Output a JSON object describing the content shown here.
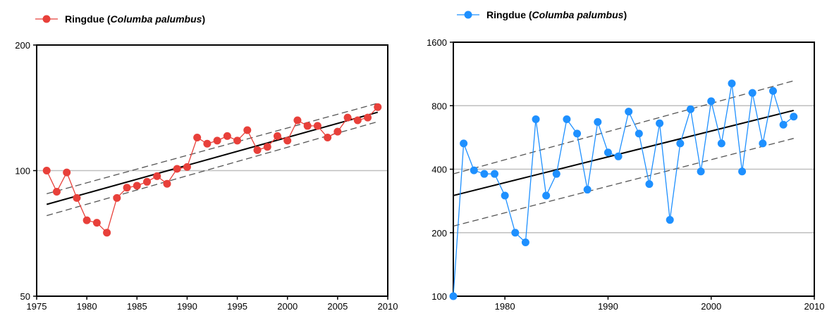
{
  "chart_data": [
    {
      "type": "line",
      "legend": {
        "name": "Ringdue",
        "latin": "Columba palumbus",
        "position": "top-left"
      },
      "yscale": "log",
      "xlim": [
        1975,
        2010
      ],
      "ylim": [
        50,
        200
      ],
      "xticks": [
        1975,
        1980,
        1985,
        1990,
        1995,
        2000,
        2005,
        2010
      ],
      "yticks": [
        50,
        100,
        200
      ],
      "grid_y": [
        100
      ],
      "colors": {
        "series": "#e8403a",
        "trend": "#000000",
        "ci": "#555555",
        "grid": "#bfbfbf"
      },
      "series": [
        {
          "name": "Ringdue (Columba palumbus)",
          "x": [
            1976,
            1977,
            1978,
            1979,
            1980,
            1981,
            1982,
            1983,
            1984,
            1985,
            1986,
            1987,
            1988,
            1989,
            1990,
            1991,
            1992,
            1993,
            1994,
            1995,
            1996,
            1997,
            1998,
            1999,
            2000,
            2001,
            2002,
            2003,
            2004,
            2005,
            2006,
            2007,
            2008,
            2009
          ],
          "y": [
            100,
            89,
            99,
            86,
            76,
            75,
            71,
            86,
            91,
            92,
            94,
            97,
            93,
            101,
            102,
            120,
            116,
            118,
            121,
            118,
            125,
            112,
            114,
            121,
            118,
            132,
            128,
            128,
            120,
            124,
            134,
            132,
            134,
            142
          ]
        }
      ],
      "trend": {
        "x": [
          1976,
          2009
        ],
        "y": [
          83,
          138
        ]
      },
      "ci_upper": {
        "x": [
          1976,
          2009
        ],
        "y": [
          88,
          145
        ]
      },
      "ci_lower": {
        "x": [
          1976,
          2009
        ],
        "y": [
          78,
          131
        ]
      }
    },
    {
      "type": "line",
      "legend": {
        "name": "Ringdue",
        "latin": "Columba palumbus",
        "position": "top-left"
      },
      "yscale": "log",
      "xlim": [
        1975,
        2010
      ],
      "ylim": [
        100,
        1600
      ],
      "xticks": [
        1980,
        1990,
        2000,
        2010
      ],
      "yticks": [
        100,
        200,
        400,
        800,
        1600
      ],
      "grid_y": [
        200,
        400,
        800
      ],
      "colors": {
        "series": "#1e90ff",
        "trend": "#000000",
        "ci": "#555555",
        "grid": "#bfbfbf"
      },
      "series": [
        {
          "name": "Ringdue (Columba palumbus)",
          "x": [
            1975,
            1976,
            1977,
            1978,
            1979,
            1980,
            1981,
            1982,
            1983,
            1984,
            1985,
            1986,
            1987,
            1988,
            1989,
            1990,
            1991,
            1992,
            1993,
            1994,
            1995,
            1996,
            1997,
            1998,
            1999,
            2000,
            2001,
            2002,
            2003,
            2004,
            2005,
            2006,
            2007,
            2008
          ],
          "y": [
            100,
            530,
            395,
            380,
            380,
            300,
            200,
            180,
            690,
            300,
            380,
            690,
            590,
            320,
            670,
            480,
            460,
            750,
            590,
            340,
            660,
            230,
            530,
            770,
            390,
            840,
            530,
            1020,
            390,
            920,
            530,
            940,
            650,
            710
          ]
        }
      ],
      "trend": {
        "x": [
          1975,
          2008
        ],
        "y": [
          300,
          760
        ]
      },
      "ci_upper": {
        "x": [
          1975,
          2008
        ],
        "y": [
          380,
          1050
        ]
      },
      "ci_lower": {
        "x": [
          1975,
          2008
        ],
        "y": [
          215,
          560
        ]
      }
    }
  ]
}
